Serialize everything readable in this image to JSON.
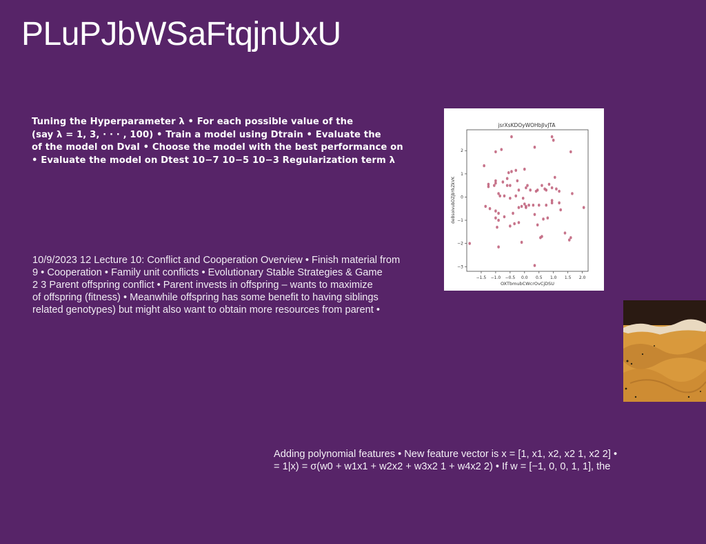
{
  "slide_title": "PLuPJbWSaFtqjnUxU",
  "bold_block": {
    "lines": [
      "Tuning the Hyperparameter λ • For each possible value of the",
      "(say λ = 1, 3, · · · , 100) • Train a model using Dtrain • Evaluate the",
      "of the model on Dval • Choose the model with the best performance on",
      "• Evaluate the model on Dtest 10−7 10−5 10−3 Regularization term λ"
    ]
  },
  "lecture_block": {
    "lines": [
      "10/9/2023 12 Lecture 10: Conflict and Cooperation Overview • Finish material from",
      "9 • Cooperation • Family unit conflicts • Evolutionary Stable Strategies & Game",
      "2 3 Parent offspring conflict • Parent invests in offspring – wants to maximize",
      "of offspring (fitness) • Meanwhile offspring has some benefit to having siblings",
      "related genotypes) but might also want to obtain more resources from parent •"
    ]
  },
  "poly_block": {
    "lines": [
      "Adding polynomial features • New feature vector is x = [1, x1, x2, x2 1, x2 2] •",
      "= 1|x) = σ(w0 + w1x1 + w2x2 + w3x2 1 + w4x2 2) • If w = [−1, 0, 0, 1, 1], the"
    ]
  },
  "chart_data": {
    "type": "scatter",
    "title": "jsrXsKDOyWOHbJIvJTA",
    "xlabel": "OXTbmubCWcrOvCjDSU",
    "ylabel": "deBsoivubDZjbYkZkVK",
    "xlim": [
      -2.0,
      2.2
    ],
    "ylim": [
      -3.2,
      2.9
    ],
    "xticks": [
      "−1.5",
      "−1.0",
      "−0.5",
      "0.0",
      "0.5",
      "1.0",
      "1.5",
      "2.0"
    ],
    "xtick_values": [
      -1.5,
      -1.0,
      -0.5,
      0.0,
      0.5,
      1.0,
      1.5,
      2.0
    ],
    "yticks": [
      "2",
      "1",
      "0",
      "−1",
      "−2",
      "−3"
    ],
    "ytick_values": [
      2,
      1,
      0,
      -1,
      -2,
      -3
    ],
    "point_color": "#c1657e",
    "points": [
      [
        -0.45,
        2.6
      ],
      [
        0.95,
        2.6
      ],
      [
        1.0,
        2.45
      ],
      [
        0.35,
        2.15
      ],
      [
        -1.0,
        1.95
      ],
      [
        -0.8,
        2.05
      ],
      [
        1.6,
        1.95
      ],
      [
        -1.4,
        1.35
      ],
      [
        -0.55,
        1.05
      ],
      [
        -0.45,
        1.1
      ],
      [
        -0.3,
        1.15
      ],
      [
        0.0,
        1.2
      ],
      [
        -0.6,
        0.8
      ],
      [
        -0.75,
        0.65
      ],
      [
        -1.0,
        0.6
      ],
      [
        -1.0,
        0.7
      ],
      [
        -1.25,
        0.55
      ],
      [
        -1.25,
        0.45
      ],
      [
        -1.05,
        0.5
      ],
      [
        -0.5,
        0.5
      ],
      [
        -0.6,
        0.5
      ],
      [
        -0.25,
        0.7
      ],
      [
        0.05,
        0.4
      ],
      [
        0.1,
        0.5
      ],
      [
        0.2,
        0.3
      ],
      [
        0.4,
        0.25
      ],
      [
        0.45,
        0.3
      ],
      [
        0.6,
        0.5
      ],
      [
        0.7,
        0.35
      ],
      [
        0.75,
        0.3
      ],
      [
        0.95,
        0.4
      ],
      [
        1.05,
        0.85
      ],
      [
        0.85,
        0.55
      ],
      [
        1.1,
        0.35
      ],
      [
        1.2,
        0.25
      ],
      [
        1.65,
        0.15
      ],
      [
        -0.9,
        0.15
      ],
      [
        -0.85,
        0.05
      ],
      [
        -0.7,
        0.05
      ],
      [
        -0.5,
        -0.05
      ],
      [
        -0.3,
        0.05
      ],
      [
        -0.2,
        0.3
      ],
      [
        -0.05,
        -0.05
      ],
      [
        0.0,
        -0.3
      ],
      [
        0.05,
        -0.4
      ],
      [
        0.15,
        -0.35
      ],
      [
        0.3,
        -0.35
      ],
      [
        0.5,
        -0.35
      ],
      [
        0.75,
        -0.35
      ],
      [
        0.95,
        -0.15
      ],
      [
        0.95,
        -0.25
      ],
      [
        1.2,
        -0.25
      ],
      [
        1.25,
        -0.55
      ],
      [
        -1.35,
        -0.4
      ],
      [
        -1.2,
        -0.5
      ],
      [
        -1.0,
        -0.6
      ],
      [
        -0.9,
        -0.7
      ],
      [
        -1.0,
        -0.9
      ],
      [
        -0.9,
        -1.0
      ],
      [
        -0.7,
        -0.85
      ],
      [
        -0.4,
        -0.7
      ],
      [
        -0.2,
        -0.45
      ],
      [
        -0.1,
        -0.4
      ],
      [
        0.05,
        -0.45
      ],
      [
        0.35,
        -0.75
      ],
      [
        0.65,
        -0.95
      ],
      [
        0.8,
        -0.9
      ],
      [
        -0.95,
        -1.3
      ],
      [
        -0.5,
        -1.25
      ],
      [
        -0.35,
        -1.15
      ],
      [
        -0.2,
        -1.1
      ],
      [
        0.45,
        -1.2
      ],
      [
        0.6,
        -1.7
      ],
      [
        0.55,
        -1.75
      ],
      [
        1.4,
        -1.55
      ],
      [
        1.55,
        -1.85
      ],
      [
        1.6,
        -1.75
      ],
      [
        -0.1,
        -1.95
      ],
      [
        -0.9,
        -2.15
      ],
      [
        -1.9,
        -2.0
      ],
      [
        2.05,
        -0.45
      ],
      [
        0.35,
        -2.95
      ]
    ]
  },
  "photo": {
    "sky_color": "#2a1a12",
    "dune_color": "#d79a3e",
    "dune_shadow": "#b4742a"
  }
}
